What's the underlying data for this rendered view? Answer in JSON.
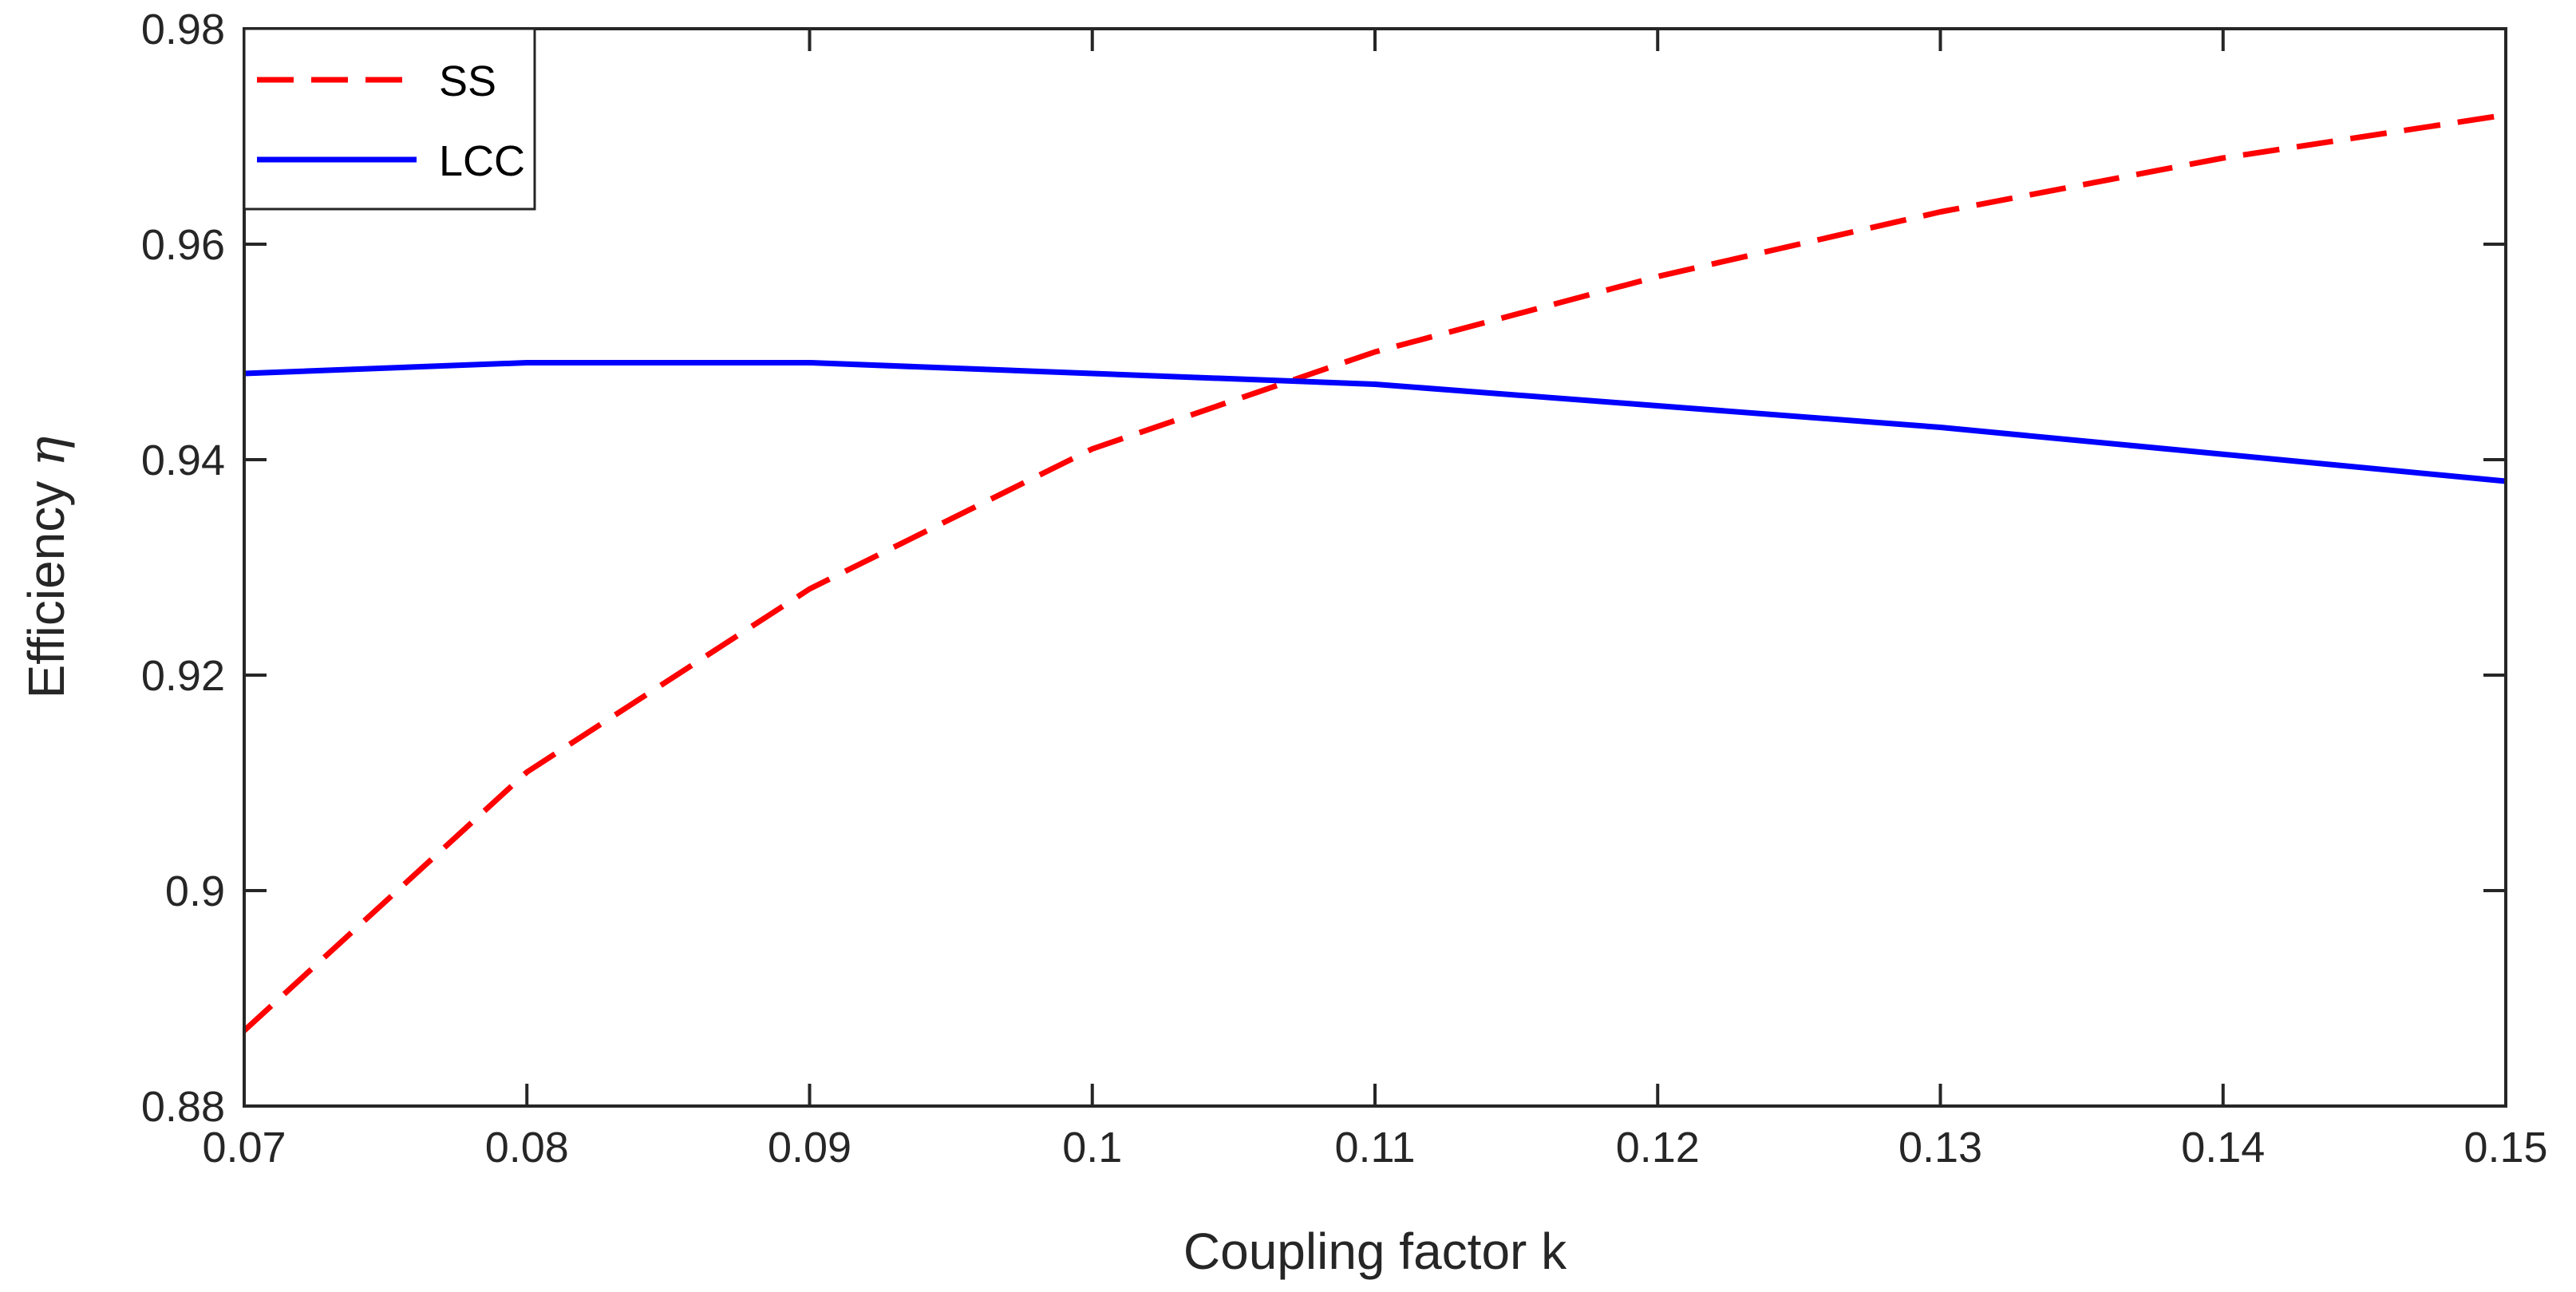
{
  "chart_data": {
    "type": "line",
    "title": "",
    "xlabel": "Coupling factor k",
    "ylabel": "Efficiency",
    "ylabel_symbol": "η",
    "xlim": [
      0.07,
      0.15
    ],
    "ylim": [
      0.88,
      0.98
    ],
    "xticks": [
      0.07,
      0.08,
      0.09,
      0.1,
      0.11,
      0.12,
      0.13,
      0.14,
      0.15
    ],
    "xtick_labels": [
      "0.07",
      "0.08",
      "0.09",
      "0.1",
      "0.11",
      "0.12",
      "0.13",
      "0.14",
      "0.15"
    ],
    "yticks": [
      0.88,
      0.9,
      0.92,
      0.94,
      0.96,
      0.98
    ],
    "ytick_labels": [
      "0.88",
      "0.9",
      "0.92",
      "0.94",
      "0.96",
      "0.98"
    ],
    "grid": false,
    "legend_position": "top-left",
    "x": [
      0.07,
      0.08,
      0.09,
      0.1,
      0.11,
      0.12,
      0.13,
      0.14,
      0.15
    ],
    "series": [
      {
        "name": "SS",
        "color": "#ff0000",
        "style": "dashed",
        "values": [
          0.887,
          0.911,
          0.928,
          0.941,
          0.95,
          0.957,
          0.963,
          0.968,
          0.972
        ]
      },
      {
        "name": "LCC",
        "color": "#0000ff",
        "style": "solid",
        "values": [
          0.948,
          0.949,
          0.949,
          0.948,
          0.947,
          0.945,
          0.943,
          0.9405,
          0.938
        ]
      }
    ]
  }
}
